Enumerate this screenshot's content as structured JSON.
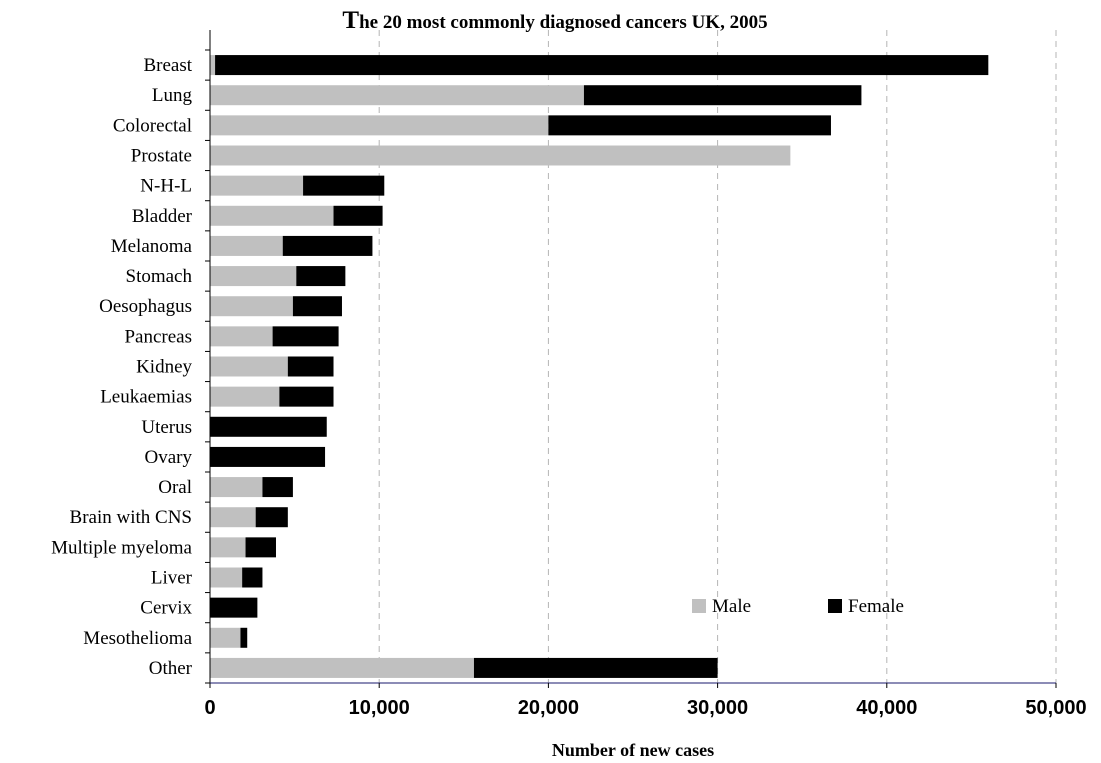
{
  "chart_data": {
    "type": "bar",
    "orientation": "horizontal",
    "stacked": true,
    "title": "The 20 most commonly diagnosed cancers UK, 2005",
    "xlabel": "Number of new cases",
    "ylabel": "",
    "xlim": [
      0,
      50000
    ],
    "x_ticks": [
      0,
      10000,
      20000,
      30000,
      40000,
      50000
    ],
    "x_tick_labels": [
      "0",
      "10,000",
      "20,000",
      "30,000",
      "40,000",
      "50,000"
    ],
    "grid": "vertical dashed",
    "legend_position": "bottom-right",
    "categories": [
      "Breast",
      "Lung",
      "Colorectal",
      "Prostate",
      "N-H-L",
      "Bladder",
      "Melanoma",
      "Stomach",
      "Oesophagus",
      "Pancreas",
      "Kidney",
      "Leukaemias",
      "Uterus",
      "Ovary",
      "Oral",
      "Brain with CNS",
      "Multiple myeloma",
      "Liver",
      "Cervix",
      "Mesothelioma",
      "Other"
    ],
    "series": [
      {
        "name": "Male",
        "color": "#c0c0c0",
        "values": [
          300,
          22100,
          20000,
          34300,
          5500,
          7300,
          4300,
          5100,
          4900,
          3700,
          4600,
          4100,
          0,
          0,
          3100,
          2700,
          2100,
          1900,
          0,
          1800,
          15600
        ]
      },
      {
        "name": "Female",
        "color": "#000000",
        "values": [
          45700,
          16400,
          16700,
          0,
          4800,
          2900,
          5300,
          2900,
          2900,
          3900,
          2700,
          3200,
          6900,
          6800,
          1800,
          1900,
          1800,
          1200,
          2800,
          400,
          14400
        ]
      }
    ]
  }
}
